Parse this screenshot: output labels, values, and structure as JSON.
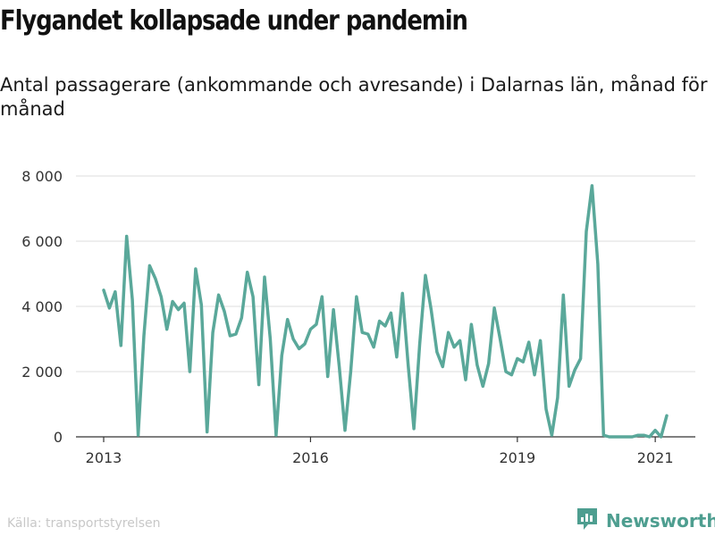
{
  "title": "Flygandet kollapsade under pandemin",
  "subtitle": "Antal passagerare (ankommande och avresande) i Dalarnas län, månad för månad",
  "source": "Källa: transportstyrelsen",
  "brand": {
    "name": "Newsworthy",
    "icon": "newsworthy-logo-icon"
  },
  "colors": {
    "line": "#5aa89a",
    "grid": "#dddddd",
    "axis": "#333333",
    "brand": "#4e9e90"
  },
  "chart_data": {
    "type": "line",
    "title": "Flygandet kollapsade under pandemin",
    "subtitle": "Antal passagerare (ankommande och avresande) i Dalarnas län, månad för månad",
    "xlabel": "",
    "ylabel": "",
    "ylim": [
      0,
      8000
    ],
    "yticks": [
      0,
      2000,
      4000,
      6000,
      8000
    ],
    "ytick_labels": [
      "0",
      "2 000",
      "4 000",
      "6 000",
      "8 000"
    ],
    "xticks": [
      "2013",
      "2016",
      "2019",
      "2021"
    ],
    "xlim": [
      "2013-01",
      "2021-03"
    ],
    "grid": true,
    "series": [
      {
        "values": [
          [
            "2013-01",
            4500
          ],
          [
            "2013-02",
            3950
          ],
          [
            "2013-03",
            4450
          ],
          [
            "2013-04",
            2800
          ],
          [
            "2013-05",
            6150
          ],
          [
            "2013-06",
            4200
          ],
          [
            "2013-07",
            50
          ],
          [
            "2013-08",
            3100
          ],
          [
            "2013-09",
            5250
          ],
          [
            "2013-10",
            4850
          ],
          [
            "2013-11",
            4300
          ],
          [
            "2013-12",
            3300
          ],
          [
            "2014-01",
            4150
          ],
          [
            "2014-02",
            3900
          ],
          [
            "2014-03",
            4100
          ],
          [
            "2014-04",
            2000
          ],
          [
            "2014-05",
            5150
          ],
          [
            "2014-06",
            4050
          ],
          [
            "2014-07",
            150
          ],
          [
            "2014-08",
            3200
          ],
          [
            "2014-09",
            4350
          ],
          [
            "2014-10",
            3850
          ],
          [
            "2014-11",
            3100
          ],
          [
            "2014-12",
            3150
          ],
          [
            "2015-01",
            3650
          ],
          [
            "2015-02",
            5050
          ],
          [
            "2015-03",
            4300
          ],
          [
            "2015-04",
            1600
          ],
          [
            "2015-05",
            4900
          ],
          [
            "2015-06",
            3000
          ],
          [
            "2015-07",
            50
          ],
          [
            "2015-08",
            2500
          ],
          [
            "2015-09",
            3600
          ],
          [
            "2015-10",
            3000
          ],
          [
            "2015-11",
            2700
          ],
          [
            "2015-12",
            2850
          ],
          [
            "2016-01",
            3300
          ],
          [
            "2016-02",
            3450
          ],
          [
            "2016-03",
            4300
          ],
          [
            "2016-04",
            1850
          ],
          [
            "2016-05",
            3900
          ],
          [
            "2016-06",
            2150
          ],
          [
            "2016-07",
            200
          ],
          [
            "2016-08",
            2000
          ],
          [
            "2016-09",
            4300
          ],
          [
            "2016-10",
            3200
          ],
          [
            "2016-11",
            3150
          ],
          [
            "2016-12",
            2750
          ],
          [
            "2017-01",
            3550
          ],
          [
            "2017-02",
            3400
          ],
          [
            "2017-03",
            3800
          ],
          [
            "2017-04",
            2450
          ],
          [
            "2017-05",
            4400
          ],
          [
            "2017-06",
            2200
          ],
          [
            "2017-07",
            250
          ],
          [
            "2017-08",
            2850
          ],
          [
            "2017-09",
            4950
          ],
          [
            "2017-10",
            3900
          ],
          [
            "2017-11",
            2600
          ],
          [
            "2017-12",
            2150
          ],
          [
            "2018-01",
            3200
          ],
          [
            "2018-02",
            2750
          ],
          [
            "2018-03",
            2950
          ],
          [
            "2018-04",
            1750
          ],
          [
            "2018-05",
            3450
          ],
          [
            "2018-06",
            2200
          ],
          [
            "2018-07",
            1550
          ],
          [
            "2018-08",
            2250
          ],
          [
            "2018-09",
            3950
          ],
          [
            "2018-10",
            3000
          ],
          [
            "2018-11",
            2000
          ],
          [
            "2018-12",
            1900
          ],
          [
            "2019-01",
            2400
          ],
          [
            "2019-02",
            2300
          ],
          [
            "2019-03",
            2900
          ],
          [
            "2019-04",
            1900
          ],
          [
            "2019-05",
            2950
          ],
          [
            "2019-06",
            850
          ],
          [
            "2019-07",
            50
          ],
          [
            "2019-08",
            1200
          ],
          [
            "2019-09",
            4350
          ],
          [
            "2019-10",
            1550
          ],
          [
            "2019-11",
            2050
          ],
          [
            "2019-12",
            2400
          ],
          [
            "2020-01",
            6300
          ],
          [
            "2020-02",
            7700
          ],
          [
            "2020-03",
            5300
          ],
          [
            "2020-04",
            50
          ],
          [
            "2020-05",
            0
          ],
          [
            "2020-06",
            0
          ],
          [
            "2020-07",
            0
          ],
          [
            "2020-08",
            0
          ],
          [
            "2020-09",
            0
          ],
          [
            "2020-10",
            50
          ],
          [
            "2020-11",
            50
          ],
          [
            "2020-12",
            0
          ],
          [
            "2021-01",
            200
          ],
          [
            "2021-02",
            0
          ],
          [
            "2021-03",
            650
          ]
        ]
      }
    ]
  }
}
